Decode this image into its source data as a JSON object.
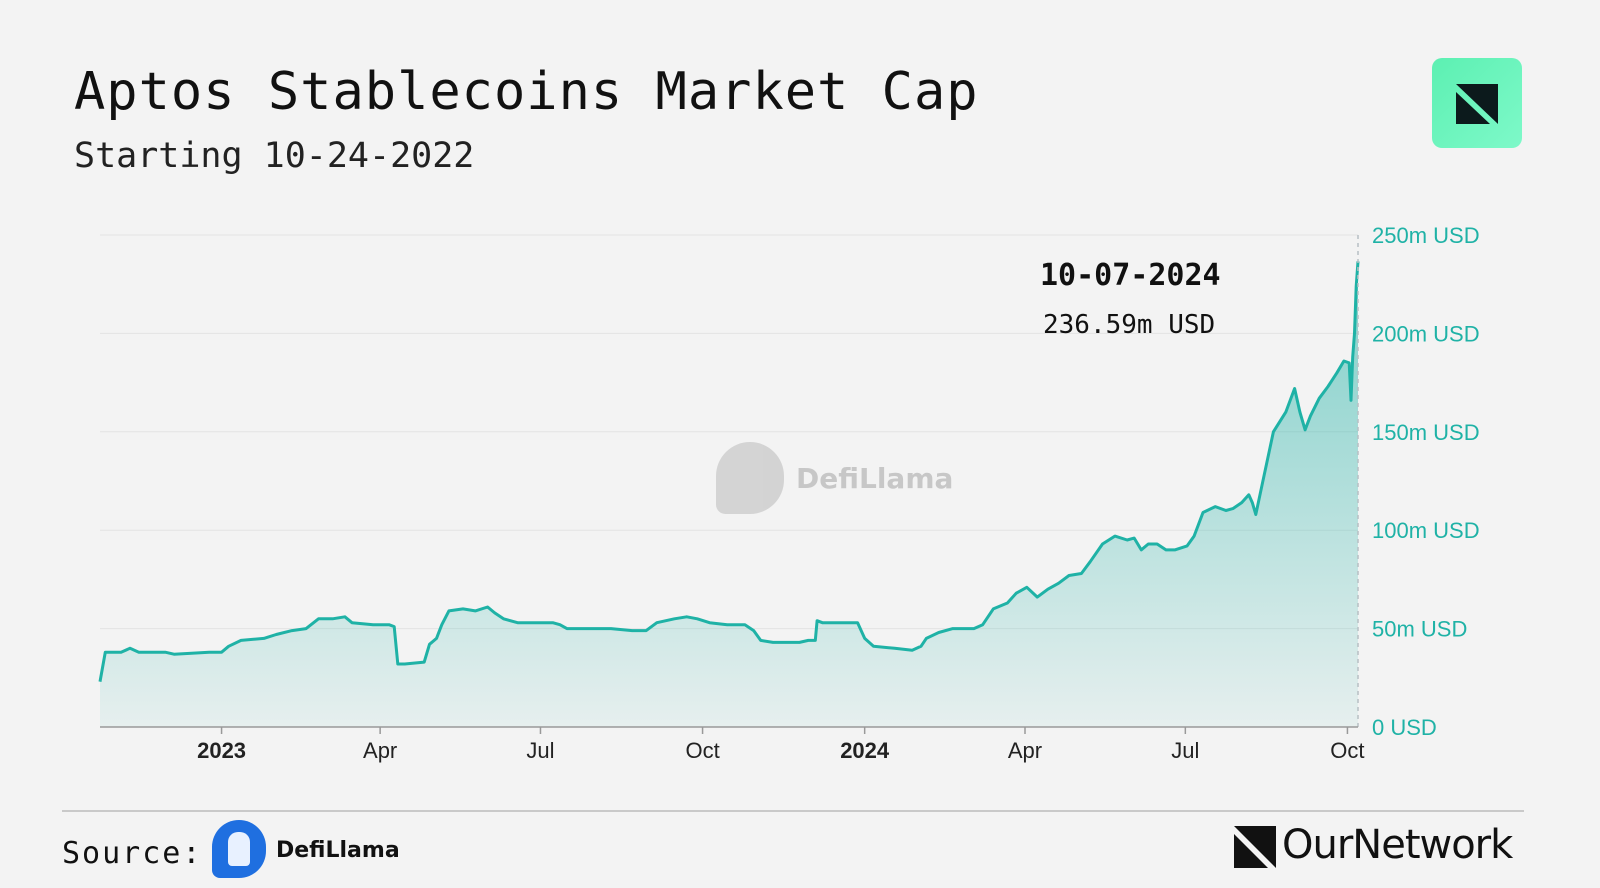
{
  "header": {
    "title": "Aptos Stablecoins Market Cap",
    "subtitle": "Starting 10-24-2022",
    "brand_icon": "ournetwork-badge-icon"
  },
  "tooltip": {
    "date": "10-07-2024",
    "value": "236.59m USD"
  },
  "watermark": {
    "text": "DefiLlama",
    "icon": "llama-icon"
  },
  "footer": {
    "source_label": "Source:",
    "source_name": "DefiLlama",
    "source_icon": "llama-icon",
    "brand_name": "OurNetwork",
    "brand_icon": "ournetwork-icon"
  },
  "colors": {
    "line": "#1fb2a6",
    "axis_text": "#1fb2a6",
    "badge": "#6df5bf"
  },
  "chart_data": {
    "type": "area",
    "ylim": [
      0,
      250
    ],
    "y_unit": "m USD",
    "y_ticks": [
      0,
      50,
      100,
      150,
      200,
      250
    ],
    "y_tick_labels": [
      "0 USD",
      "50m USD",
      "100m USD",
      "150m USD",
      "200m USD",
      "250m USD"
    ],
    "x_ticks": [
      {
        "date": "2023-01-01",
        "label": "2023",
        "bold": true
      },
      {
        "date": "2023-04-01",
        "label": "Apr",
        "bold": false
      },
      {
        "date": "2023-07-01",
        "label": "Jul",
        "bold": false
      },
      {
        "date": "2023-10-01",
        "label": "Oct",
        "bold": false
      },
      {
        "date": "2024-01-01",
        "label": "2024",
        "bold": true
      },
      {
        "date": "2024-04-01",
        "label": "Apr",
        "bold": false
      },
      {
        "date": "2024-07-01",
        "label": "Jul",
        "bold": false
      },
      {
        "date": "2024-10-01",
        "label": "Oct",
        "bold": false
      }
    ],
    "x_range": [
      "2022-10-24",
      "2024-10-07"
    ],
    "grid": true,
    "series": [
      {
        "values": [
          [
            "2022-10-24",
            23
          ],
          [
            "2022-10-27",
            38
          ],
          [
            "2022-11-05",
            38
          ],
          [
            "2022-11-10",
            40
          ],
          [
            "2022-11-15",
            38
          ],
          [
            "2022-11-30",
            38
          ],
          [
            "2022-12-05",
            37
          ],
          [
            "2022-12-25",
            38
          ],
          [
            "2023-01-01",
            38
          ],
          [
            "2023-01-05",
            41
          ],
          [
            "2023-01-12",
            44
          ],
          [
            "2023-01-25",
            45
          ],
          [
            "2023-02-01",
            47
          ],
          [
            "2023-02-10",
            49
          ],
          [
            "2023-02-18",
            50
          ],
          [
            "2023-02-25",
            55
          ],
          [
            "2023-03-05",
            55
          ],
          [
            "2023-03-12",
            56
          ],
          [
            "2023-03-16",
            53
          ],
          [
            "2023-03-28",
            52
          ],
          [
            "2023-04-06",
            52
          ],
          [
            "2023-04-09",
            51
          ],
          [
            "2023-04-11",
            32
          ],
          [
            "2023-04-15",
            32
          ],
          [
            "2023-04-26",
            33
          ],
          [
            "2023-04-29",
            42
          ],
          [
            "2023-05-03",
            45
          ],
          [
            "2023-05-06",
            52
          ],
          [
            "2023-05-10",
            59
          ],
          [
            "2023-05-18",
            60
          ],
          [
            "2023-05-25",
            59
          ],
          [
            "2023-06-01",
            61
          ],
          [
            "2023-06-05",
            58
          ],
          [
            "2023-06-10",
            55
          ],
          [
            "2023-06-18",
            53
          ],
          [
            "2023-06-28",
            53
          ],
          [
            "2023-07-08",
            53
          ],
          [
            "2023-07-12",
            52
          ],
          [
            "2023-07-16",
            50
          ],
          [
            "2023-07-25",
            50
          ],
          [
            "2023-08-10",
            50
          ],
          [
            "2023-08-22",
            49
          ],
          [
            "2023-08-30",
            49
          ],
          [
            "2023-09-05",
            53
          ],
          [
            "2023-09-15",
            55
          ],
          [
            "2023-09-22",
            56
          ],
          [
            "2023-09-28",
            55
          ],
          [
            "2023-10-05",
            53
          ],
          [
            "2023-10-15",
            52
          ],
          [
            "2023-10-25",
            52
          ],
          [
            "2023-10-30",
            49
          ],
          [
            "2023-11-03",
            44
          ],
          [
            "2023-11-10",
            43
          ],
          [
            "2023-11-25",
            43
          ],
          [
            "2023-11-30",
            44
          ],
          [
            "2023-12-04",
            44
          ],
          [
            "2023-12-05",
            54
          ],
          [
            "2023-12-08",
            53
          ],
          [
            "2023-12-28",
            53
          ],
          [
            "2024-01-01",
            45
          ],
          [
            "2024-01-06",
            41
          ],
          [
            "2024-01-18",
            40
          ],
          [
            "2024-01-28",
            39
          ],
          [
            "2024-02-02",
            41
          ],
          [
            "2024-02-05",
            45
          ],
          [
            "2024-02-12",
            48
          ],
          [
            "2024-02-20",
            50
          ],
          [
            "2024-03-03",
            50
          ],
          [
            "2024-03-08",
            52
          ],
          [
            "2024-03-14",
            60
          ],
          [
            "2024-03-22",
            63
          ],
          [
            "2024-03-27",
            68
          ],
          [
            "2024-04-02",
            71
          ],
          [
            "2024-04-08",
            66
          ],
          [
            "2024-04-14",
            70
          ],
          [
            "2024-04-20",
            73
          ],
          [
            "2024-04-26",
            77
          ],
          [
            "2024-05-03",
            78
          ],
          [
            "2024-05-08",
            84
          ],
          [
            "2024-05-15",
            93
          ],
          [
            "2024-05-22",
            97
          ],
          [
            "2024-05-29",
            95
          ],
          [
            "2024-06-02",
            96
          ],
          [
            "2024-06-06",
            90
          ],
          [
            "2024-06-10",
            93
          ],
          [
            "2024-06-15",
            93
          ],
          [
            "2024-06-20",
            90
          ],
          [
            "2024-06-25",
            90
          ],
          [
            "2024-07-02",
            92
          ],
          [
            "2024-07-06",
            97
          ],
          [
            "2024-07-11",
            109
          ],
          [
            "2024-07-18",
            112
          ],
          [
            "2024-07-24",
            110
          ],
          [
            "2024-07-28",
            111
          ],
          [
            "2024-08-02",
            114
          ],
          [
            "2024-08-06",
            118
          ],
          [
            "2024-08-08",
            114
          ],
          [
            "2024-08-10",
            108
          ],
          [
            "2024-08-14",
            125
          ],
          [
            "2024-08-20",
            150
          ],
          [
            "2024-08-27",
            160
          ],
          [
            "2024-09-01",
            172
          ],
          [
            "2024-09-04",
            160
          ],
          [
            "2024-09-07",
            151
          ],
          [
            "2024-09-10",
            158
          ],
          [
            "2024-09-15",
            167
          ],
          [
            "2024-09-20",
            173
          ],
          [
            "2024-09-25",
            180
          ],
          [
            "2024-09-29",
            186
          ],
          [
            "2024-10-02",
            185
          ],
          [
            "2024-10-03",
            166
          ],
          [
            "2024-10-04",
            188
          ],
          [
            "2024-10-05",
            200
          ],
          [
            "2024-10-06",
            224
          ],
          [
            "2024-10-07",
            236.59
          ]
        ]
      }
    ]
  }
}
